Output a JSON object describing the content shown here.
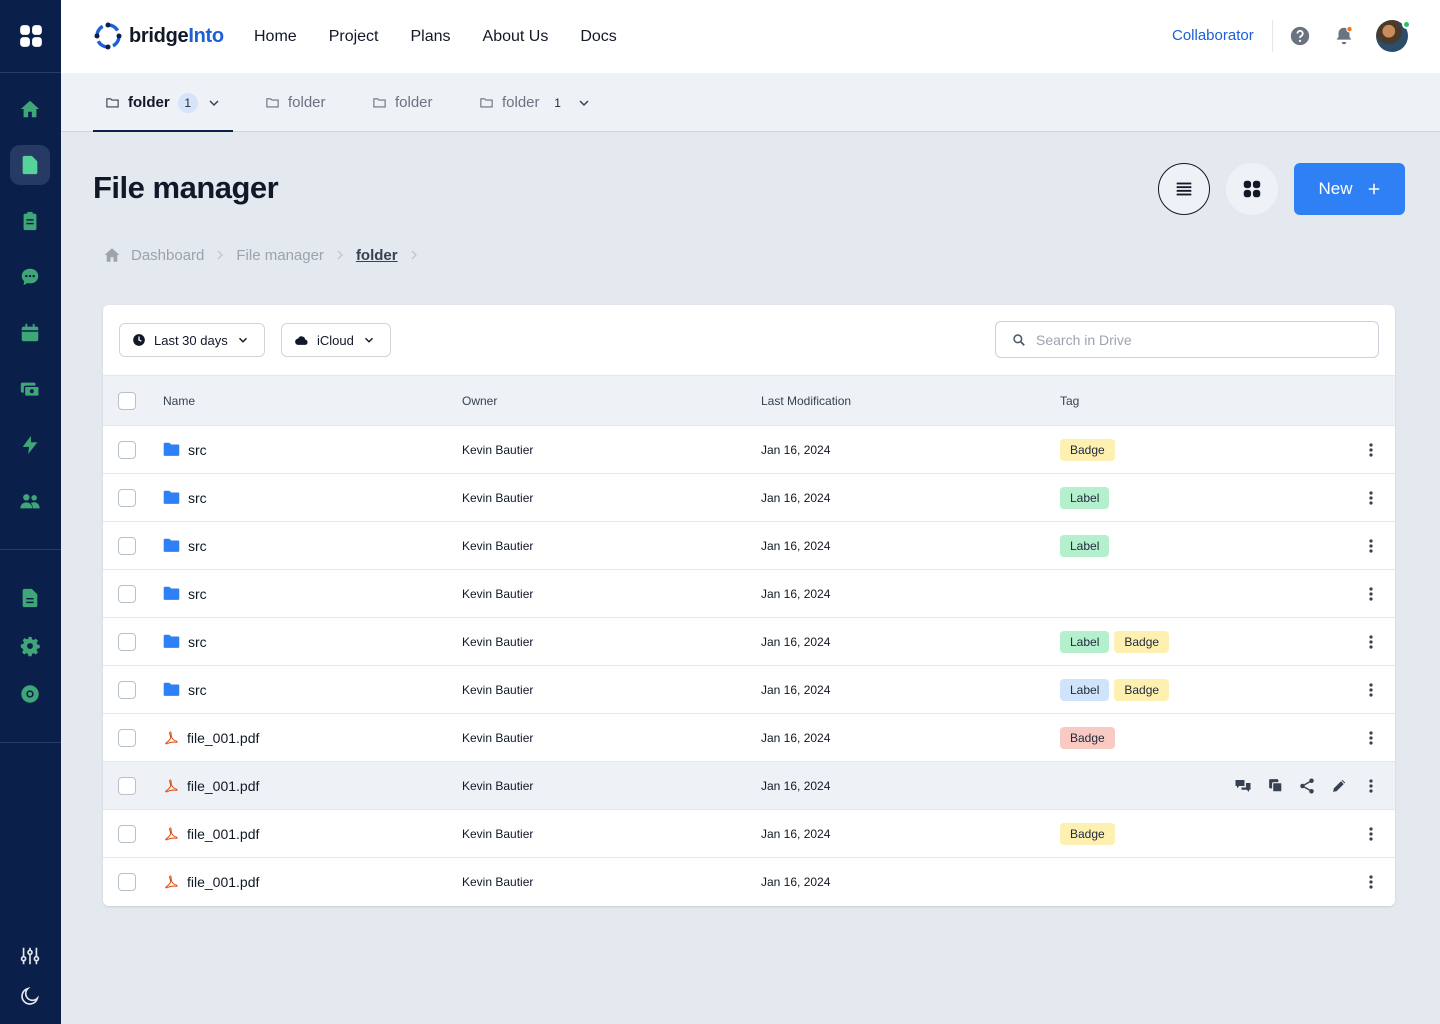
{
  "app": {
    "brand_prefix": "bridge",
    "brand_suffix": "Into"
  },
  "nav": [
    "Home",
    "Project",
    "Plans",
    "About Us",
    "Docs"
  ],
  "header": {
    "role_link": "Collaborator"
  },
  "tabs": [
    {
      "label": "folder",
      "count": "1",
      "active": true,
      "has_chevron": true
    },
    {
      "label": "folder",
      "count": "",
      "active": false,
      "has_chevron": false
    },
    {
      "label": "folder",
      "count": "",
      "active": false,
      "has_chevron": false
    },
    {
      "label": "folder",
      "count": "1",
      "active": false,
      "has_chevron": true
    }
  ],
  "page": {
    "title": "File manager",
    "new_label": "New"
  },
  "breadcrumb": {
    "items": [
      "Dashboard",
      "File manager"
    ],
    "current": "folder"
  },
  "filters": {
    "period": "Last 30 days",
    "source": "iCloud",
    "search_placeholder": "Search in Drive"
  },
  "table": {
    "columns": [
      "Name",
      "Owner",
      "Last Modification",
      "Tag"
    ],
    "rows": [
      {
        "type": "folder",
        "name": "src",
        "owner": "Kevin Bautier",
        "modified": "Jan 16, 2024",
        "tags": [
          {
            "text": "Badge",
            "color": "#fdf0b0"
          }
        ]
      },
      {
        "type": "folder",
        "name": "src",
        "owner": "Kevin Bautier",
        "modified": "Jan 16, 2024",
        "tags": [
          {
            "text": "Label",
            "color": "#b4f0ce"
          }
        ]
      },
      {
        "type": "folder",
        "name": "src",
        "owner": "Kevin Bautier",
        "modified": "Jan 16, 2024",
        "tags": [
          {
            "text": "Label",
            "color": "#b4f0ce"
          }
        ]
      },
      {
        "type": "folder",
        "name": "src",
        "owner": "Kevin Bautier",
        "modified": "Jan 16, 2024",
        "tags": []
      },
      {
        "type": "folder",
        "name": "src",
        "owner": "Kevin Bautier",
        "modified": "Jan 16, 2024",
        "tags": [
          {
            "text": "Label",
            "color": "#b4f0ce"
          },
          {
            "text": "Badge",
            "color": "#fdf0b0"
          }
        ]
      },
      {
        "type": "folder",
        "name": "src",
        "owner": "Kevin Bautier",
        "modified": "Jan 16, 2024",
        "tags": [
          {
            "text": "Label",
            "color": "#cfe4fb"
          },
          {
            "text": "Badge",
            "color": "#fdf0b0"
          }
        ]
      },
      {
        "type": "pdf",
        "name": "file_001.pdf",
        "owner": "Kevin Bautier",
        "modified": "Jan 16, 2024",
        "tags": [
          {
            "text": "Badge",
            "color": "#f9c9c4"
          }
        ]
      },
      {
        "type": "pdf",
        "name": "file_001.pdf",
        "owner": "Kevin Bautier",
        "modified": "Jan 16, 2024",
        "tags": [],
        "hover": true
      },
      {
        "type": "pdf",
        "name": "file_001.pdf",
        "owner": "Kevin Bautier",
        "modified": "Jan 16, 2024",
        "tags": [
          {
            "text": "Badge",
            "color": "#fdf0b0"
          }
        ]
      },
      {
        "type": "pdf",
        "name": "file_001.pdf",
        "owner": "Kevin Bautier",
        "modified": "Jan 16, 2024",
        "tags": []
      }
    ]
  },
  "colors": {
    "sidebar_bg": "#0b1f4b",
    "sidebar_icon": "#3fa678",
    "primary": "#2f80f5",
    "folder_icon": "#2f80f5",
    "pdf_icon": "#d9531e"
  },
  "icons": {
    "sidebar_top": [
      "home-icon",
      "document-icon",
      "clipboard-icon",
      "chat-icon",
      "calendar-icon",
      "cash-icon",
      "bolt-icon",
      "users-icon"
    ],
    "sidebar_bottom": [
      "file-icon",
      "gear-icon",
      "lifebuoy-icon"
    ],
    "sidebar_footer": [
      "sliders-icon",
      "moon-icon"
    ],
    "row_actions": [
      "comments-icon",
      "copy-icon",
      "share-icon",
      "edit-icon",
      "more-vertical-icon"
    ]
  }
}
